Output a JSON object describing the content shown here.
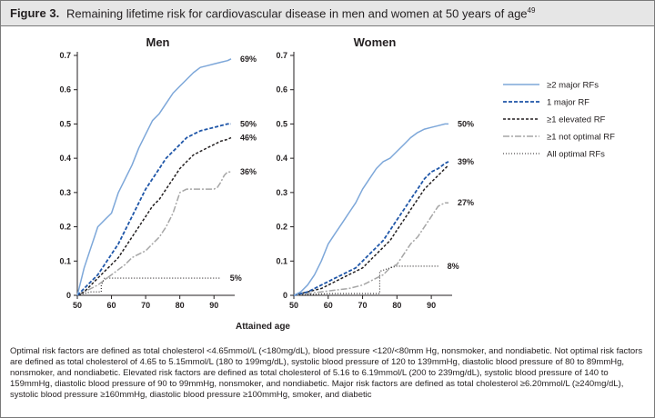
{
  "figure": {
    "label": "Figure 3.",
    "caption": "Remaining lifetime risk for cardiovascular disease in men and women at 50 years of age",
    "caption_ref": "49",
    "footnote": "Optimal risk factors are defined as total cholesterol <4.65mmol/L (<180mg/dL), blood pressure <120/<80mm Hg, nonsmoker, and nondiabetic. Not optimal risk factors are defined as total cholesterol of 4.65 to 5.15mmol/L (180 to 199mg/dL), systolic blood pressure of 120 to 139mmHg, diastolic blood pressure of 80 to 89mmHg, nonsmoker, and nondiabetic. Elevated risk factors are defined as total cholesterol of 5.16 to 6.19mmol/L (200 to 239mg/dL), systolic blood pressure of 140 to 159mmHg, diastolic blood pressure of 90 to 99mmHg, nonsmoker, and nondiabetic. Major risk factors are defined as total cholesterol ≥6.20mmol/L (≥240mg/dL), systolic blood pressure ≥160mmHg, diastolic blood pressure ≥100mmHg, smoker, and diabetic"
  },
  "colors": {
    "major2": "#7da7d9",
    "major1": "#1f56a8",
    "elevated": "#231f20",
    "not_optimal": "#a6a6a6",
    "optimal": "#231f20"
  },
  "chart_data": [
    {
      "type": "line",
      "title": "Men",
      "xlabel": "Attained age",
      "ylabel": "",
      "xlim": [
        50,
        95
      ],
      "ylim": [
        0,
        0.7
      ],
      "xticks": [
        "50",
        "60",
        "70",
        "80",
        "90"
      ],
      "yticks": [
        "0",
        "0.1",
        "0.2",
        "0.3",
        "0.4",
        "0.5",
        "0.6",
        "0.7"
      ],
      "series": [
        {
          "key": "major2",
          "name": "≥2 major RFs",
          "end_label": "69%",
          "x": [
            50,
            52,
            54,
            55,
            56,
            58,
            60,
            62,
            64,
            66,
            68,
            70,
            72,
            74,
            76,
            78,
            80,
            82,
            84,
            86,
            88,
            90,
            92,
            94,
            95
          ],
          "y": [
            0,
            0.08,
            0.14,
            0.17,
            0.2,
            0.22,
            0.24,
            0.3,
            0.34,
            0.38,
            0.43,
            0.47,
            0.51,
            0.53,
            0.56,
            0.59,
            0.61,
            0.63,
            0.65,
            0.665,
            0.67,
            0.675,
            0.68,
            0.685,
            0.69
          ]
        },
        {
          "key": "major1",
          "name": "1 major RF",
          "end_label": "50%",
          "x": [
            50,
            52,
            54,
            56,
            58,
            60,
            62,
            64,
            66,
            68,
            70,
            72,
            74,
            76,
            78,
            80,
            82,
            84,
            86,
            88,
            90,
            92,
            94,
            95
          ],
          "y": [
            0,
            0.02,
            0.04,
            0.06,
            0.09,
            0.12,
            0.15,
            0.19,
            0.23,
            0.27,
            0.31,
            0.34,
            0.37,
            0.4,
            0.42,
            0.44,
            0.46,
            0.47,
            0.48,
            0.485,
            0.49,
            0.495,
            0.5,
            0.5
          ]
        },
        {
          "key": "elevated",
          "name": "≥1 elevated RF",
          "end_label": "46%",
          "x": [
            50,
            52,
            54,
            56,
            58,
            60,
            62,
            64,
            66,
            68,
            70,
            72,
            74,
            76,
            78,
            80,
            82,
            84,
            86,
            88,
            90,
            92,
            94,
            95
          ],
          "y": [
            0,
            0.01,
            0.03,
            0.05,
            0.07,
            0.09,
            0.11,
            0.14,
            0.17,
            0.2,
            0.23,
            0.26,
            0.28,
            0.31,
            0.34,
            0.37,
            0.39,
            0.41,
            0.42,
            0.43,
            0.44,
            0.45,
            0.455,
            0.46
          ]
        },
        {
          "key": "not_optimal",
          "name": "≥1 not optimal RF",
          "end_label": "36%",
          "x": [
            50,
            52,
            54,
            56,
            58,
            60,
            62,
            64,
            66,
            68,
            70,
            72,
            74,
            76,
            78,
            80,
            82,
            84,
            86,
            88,
            90,
            91,
            92,
            93,
            94,
            95
          ],
          "y": [
            0,
            0.01,
            0.02,
            0.03,
            0.045,
            0.06,
            0.075,
            0.09,
            0.11,
            0.12,
            0.13,
            0.15,
            0.17,
            0.2,
            0.24,
            0.3,
            0.31,
            0.31,
            0.31,
            0.31,
            0.31,
            0.315,
            0.33,
            0.35,
            0.36,
            0.36
          ]
        },
        {
          "key": "optimal",
          "name": "All optimal RFs",
          "end_label": "5%",
          "x": [
            50,
            54,
            57,
            57,
            58,
            60,
            70,
            80,
            90,
            92
          ],
          "y": [
            0,
            0.01,
            0.01,
            0.03,
            0.05,
            0.05,
            0.05,
            0.05,
            0.05,
            0.05
          ]
        }
      ]
    },
    {
      "type": "line",
      "title": "Women",
      "xlabel": "Attained age",
      "ylabel": "",
      "xlim": [
        50,
        95
      ],
      "ylim": [
        0,
        0.7
      ],
      "xticks": [
        "50",
        "60",
        "70",
        "80",
        "90"
      ],
      "yticks": [
        "0",
        "0.1",
        "0.2",
        "0.3",
        "0.4",
        "0.5",
        "0.6",
        "0.7"
      ],
      "series": [
        {
          "key": "major2",
          "name": "≥2 major RFs",
          "end_label": "50%",
          "x": [
            50,
            52,
            54,
            56,
            58,
            60,
            62,
            64,
            66,
            68,
            70,
            72,
            74,
            76,
            78,
            80,
            82,
            84,
            86,
            88,
            90,
            92,
            94,
            95
          ],
          "y": [
            0,
            0.01,
            0.03,
            0.06,
            0.1,
            0.15,
            0.18,
            0.21,
            0.24,
            0.27,
            0.31,
            0.34,
            0.37,
            0.39,
            0.4,
            0.42,
            0.44,
            0.46,
            0.475,
            0.485,
            0.49,
            0.495,
            0.5,
            0.5
          ]
        },
        {
          "key": "major1",
          "name": "1 major RF",
          "end_label": "39%",
          "x": [
            50,
            52,
            54,
            56,
            58,
            60,
            62,
            64,
            66,
            68,
            70,
            72,
            74,
            76,
            78,
            80,
            82,
            84,
            86,
            88,
            90,
            92,
            94,
            95
          ],
          "y": [
            0,
            0.005,
            0.01,
            0.02,
            0.03,
            0.04,
            0.05,
            0.06,
            0.07,
            0.08,
            0.1,
            0.12,
            0.14,
            0.16,
            0.19,
            0.22,
            0.25,
            0.28,
            0.31,
            0.34,
            0.36,
            0.37,
            0.385,
            0.39
          ]
        },
        {
          "key": "elevated",
          "name": "≥1 elevated RF",
          "end_label": "",
          "x": [
            50,
            52,
            54,
            56,
            58,
            60,
            62,
            64,
            66,
            68,
            70,
            72,
            74,
            76,
            78,
            80,
            82,
            84,
            86,
            88,
            90,
            92,
            94,
            95
          ],
          "y": [
            0,
            0.005,
            0.01,
            0.015,
            0.02,
            0.03,
            0.04,
            0.05,
            0.06,
            0.07,
            0.08,
            0.1,
            0.12,
            0.14,
            0.16,
            0.19,
            0.22,
            0.25,
            0.28,
            0.31,
            0.33,
            0.35,
            0.37,
            0.38
          ]
        },
        {
          "key": "not_optimal",
          "name": "≥1 not optimal RF",
          "end_label": "27%",
          "x": [
            50,
            54,
            58,
            62,
            66,
            70,
            72,
            74,
            76,
            78,
            80,
            82,
            84,
            86,
            88,
            90,
            92,
            94,
            95
          ],
          "y": [
            0,
            0.005,
            0.01,
            0.015,
            0.02,
            0.03,
            0.04,
            0.05,
            0.06,
            0.08,
            0.09,
            0.12,
            0.15,
            0.17,
            0.2,
            0.23,
            0.26,
            0.27,
            0.27
          ]
        },
        {
          "key": "optimal",
          "name": "All optimal RFs",
          "end_label": "8%",
          "x": [
            50,
            60,
            70,
            75,
            75,
            78,
            80,
            85,
            90,
            92
          ],
          "y": [
            0,
            0.005,
            0.005,
            0.005,
            0.07,
            0.08,
            0.085,
            0.085,
            0.085,
            0.085
          ]
        }
      ]
    }
  ],
  "legend": [
    {
      "key": "major2",
      "label": "≥2 major RFs"
    },
    {
      "key": "major1",
      "label": "1 major RF"
    },
    {
      "key": "elevated",
      "label": "≥1 elevated RF"
    },
    {
      "key": "not_optimal",
      "label": "≥1 not optimal RF"
    },
    {
      "key": "optimal",
      "label": "All optimal RFs"
    }
  ]
}
